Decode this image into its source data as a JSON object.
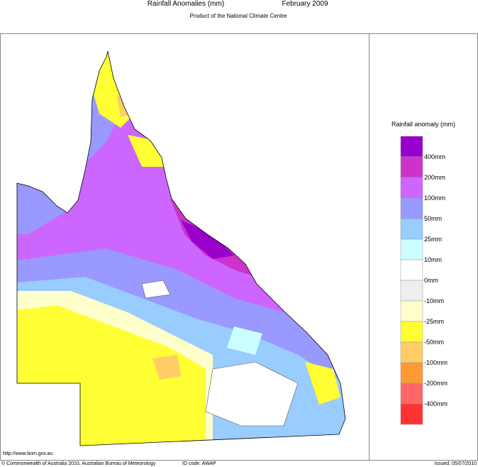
{
  "header": {
    "title": "Rainfall Anomalies (mm)",
    "period": "February 2009",
    "subtitle": "Product of the National Climate Centre"
  },
  "legend": {
    "title": "Rainfall anomaly (mm)",
    "colors": [
      "#9900cc",
      "#cc33cc",
      "#cc66ff",
      "#9999ff",
      "#99ccff",
      "#ccffff",
      "#ffffff",
      "#eeeeee",
      "#ffffcc",
      "#ffff33",
      "#ffcc66",
      "#ff9933",
      "#ff6666",
      "#ff3333"
    ],
    "labels": [
      "400mm",
      "200mm",
      "100mm",
      "50mm",
      "25mm",
      "10mm",
      "0mm",
      "-10mm",
      "-25mm",
      "-50mm",
      "-100mm",
      "-200mm",
      "-400mm"
    ]
  },
  "footer": {
    "url": "http://www.bom.gov.au",
    "copyright": "© Commonwealth of Australia 2010, Australian Bureau of Meteorology",
    "id_code": "ID code: AWAP",
    "issued": "Issued: 05/07/2010"
  }
}
